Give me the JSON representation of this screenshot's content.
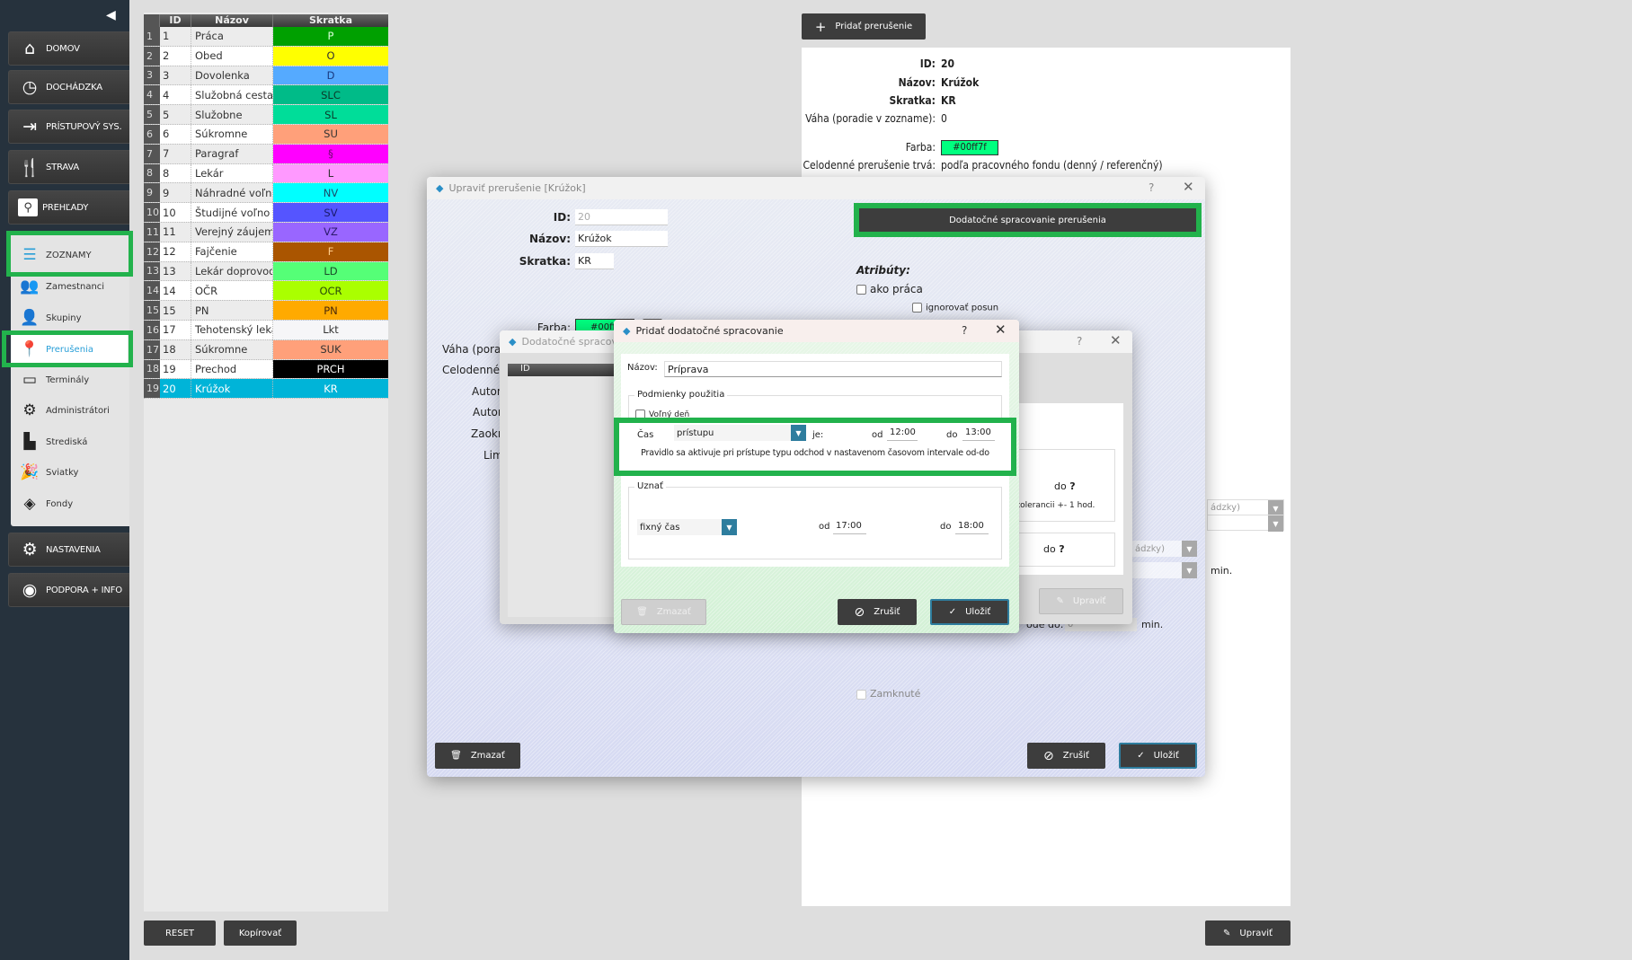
{
  "sidebar": {
    "collapse_icon": "chevron-left",
    "nav": [
      {
        "label": "DOMOV",
        "icon": "home-icon"
      },
      {
        "label": "DOCHÁDZKA",
        "icon": "clock-icon"
      },
      {
        "label": "PRÍSTUPOVÝ SYS.",
        "icon": "login-icon"
      },
      {
        "label": "STRAVA",
        "icon": "cutlery-icon"
      },
      {
        "label": "PREHĽADY",
        "icon": "search-icon"
      }
    ],
    "lists": {
      "header": "ZOZNAMY",
      "items": [
        "Zamestnanci",
        "Skupiny",
        "Prerušenia",
        "Terminály",
        "Administrátori",
        "Strediská",
        "Sviatky",
        "Fondy"
      ],
      "active": "Prerušenia"
    },
    "bottom": [
      {
        "label": "NASTAVENIA",
        "icon": "gear-icon"
      },
      {
        "label": "PODPORA + INFO",
        "icon": "lifebuoy-icon"
      }
    ]
  },
  "table": {
    "columns": [
      "ID",
      "Názov",
      "Skratka"
    ],
    "rows": [
      {
        "n": "1",
        "id": "1",
        "name": "Práca",
        "abbr": "P",
        "color": "#00a000",
        "text": "#d8ffd8"
      },
      {
        "n": "2",
        "id": "2",
        "name": "Obed",
        "abbr": "O",
        "color": "#ffff00",
        "text": "#333"
      },
      {
        "n": "3",
        "id": "3",
        "name": "Dovolenka",
        "abbr": "D",
        "color": "#55aaff",
        "text": "#1a3a80"
      },
      {
        "n": "4",
        "id": "4",
        "name": "Služobná cesta",
        "abbr": "SLC",
        "color": "#00bb88",
        "text": "#0a3a2a"
      },
      {
        "n": "5",
        "id": "5",
        "name": "Služobne",
        "abbr": "SL",
        "color": "#00dd99",
        "text": "#0a3a2a"
      },
      {
        "n": "6",
        "id": "6",
        "name": "Súkromne",
        "abbr": "SU",
        "color": "#ffa07a",
        "text": "#333"
      },
      {
        "n": "7",
        "id": "7",
        "name": "Paragraf",
        "abbr": "§",
        "color": "#ff00ff",
        "text": "#6a0a6a"
      },
      {
        "n": "8",
        "id": "8",
        "name": "Lekár",
        "abbr": "L",
        "color": "#ff99ff",
        "text": "#333"
      },
      {
        "n": "9",
        "id": "9",
        "name": "Náhradné voľno",
        "abbr": "NV",
        "color": "#00ffff",
        "text": "#1a4a6a"
      },
      {
        "n": "10",
        "id": "10",
        "name": "Študijné voľno",
        "abbr": "SV",
        "color": "#5555ff",
        "text": "#1a1a6a"
      },
      {
        "n": "11",
        "id": "11",
        "name": "Verejný záujem",
        "abbr": "VZ",
        "color": "#9966ff",
        "text": "#2a1a6a"
      },
      {
        "n": "12",
        "id": "12",
        "name": "Fajčenie",
        "abbr": "F",
        "color": "#aa5500",
        "text": "#ffcc88"
      },
      {
        "n": "13",
        "id": "13",
        "name": "Lekár doprovod",
        "abbr": "LD",
        "color": "#55ff77",
        "text": "#1a4a2a"
      },
      {
        "n": "14",
        "id": "14",
        "name": "OČR",
        "abbr": "OCR",
        "color": "#aaff00",
        "text": "#2a4a0a"
      },
      {
        "n": "15",
        "id": "15",
        "name": "PN",
        "abbr": "PN",
        "color": "#ffaa00",
        "text": "#4a2a0a"
      },
      {
        "n": "16",
        "id": "17",
        "name": "Tehotenský lekár",
        "abbr": "Lkt",
        "color": "#f6f6f8",
        "text": "#333"
      },
      {
        "n": "17",
        "id": "18",
        "name": "Súkromne",
        "abbr": "SUK",
        "color": "#ffa07a",
        "text": "#333"
      },
      {
        "n": "18",
        "id": "19",
        "name": "Prechod",
        "abbr": "PRCH",
        "color": "#000000",
        "text": "#fff"
      },
      {
        "n": "19",
        "id": "20",
        "name": "Krúžok",
        "abbr": "KR",
        "color": "#00b4d8",
        "text": "#fff",
        "selected": true
      }
    ],
    "reset_label": "RESET",
    "copy_label": "Kopírovať"
  },
  "detail": {
    "add_label": "Pridať prerušenie",
    "fields": [
      {
        "label": "ID:",
        "value": "20",
        "bold": true
      },
      {
        "label": "Názov:",
        "value": "Krúžok",
        "bold": true
      },
      {
        "label": "Skratka:",
        "value": "KR",
        "bold": true
      },
      {
        "label": "Váha (poradie v zozname):",
        "value": "0"
      },
      {
        "label": "Farba:",
        "value": "#00ff7f",
        "swatch": "#00ff7f"
      },
      {
        "label": "Celodenné prerušenie trvá:",
        "value": "podľa pracovného fondu (denný / referenčný)"
      }
    ],
    "edit_label": "Upraviť",
    "fragments": {
      "combo1": "ádzky)",
      "min": "min."
    }
  },
  "edit_dialog": {
    "title": "Upraviť prerušenie [Krúžok]",
    "help": "?",
    "id_label": "ID:",
    "id_value": "20",
    "name_label": "Názov:",
    "name_value": "Krúžok",
    "abbr_label": "Skratka:",
    "abbr_value": "KR",
    "color_label": "Farba:",
    "color_value": "#00ff",
    "extra_button": "Dodatočné spracovanie prerušenia",
    "attributes_label": "Atribúty:",
    "as_work": "ako práca",
    "ignore_shift": "ignorovať posun",
    "left_fragments": [
      "Váha (porad",
      "Celodenné p",
      "Auton",
      "Auton",
      "Zaokr",
      "Lim"
    ],
    "right_fragments": {
      "combo": "ádzky)",
      "ode_do": "ode do:",
      "ode_value": "0",
      "min": "min."
    },
    "locked": "Zamknuté",
    "delete_label": "Zmazať",
    "cancel_label": "Zrušiť",
    "save_label": "Uložiť"
  },
  "processing_dialog": {
    "title": "Dodatočné spracova",
    "help": "?",
    "column": "ID",
    "do1": "do",
    "q": "?",
    "tolerance": "ť v tolerancii +- 1 hod.",
    "do2": "do",
    "edit_label": "Upraviť"
  },
  "add_dialog": {
    "title": "Pridať dodatočné spracovanie",
    "help": "?",
    "name_label": "Názov:",
    "name_value": "Príprava",
    "conditions_legend": "Podmienky použitia",
    "free_day": "Voľný deň",
    "time_label": "Čas",
    "time_type": "prístupu",
    "is_label": "je:",
    "from_label": "od",
    "from_value": "12:00",
    "to_label": "do",
    "to_value": "13:00",
    "rule_text": "Pravidlo sa aktivuje pri prístupe typu odchod v nastavenom časovom intervale od-do",
    "accept_legend": "Uznať",
    "accept_type": "fixný čas",
    "acc_from_label": "od",
    "acc_from_value": "17:00",
    "acc_to_label": "do",
    "acc_to_value": "18:00",
    "delete_label": "Zmazať",
    "cancel_label": "Zrušiť",
    "save_label": "Uložiť"
  },
  "colors": {
    "highlight": "#22b24c",
    "accent": "#2e7d9e",
    "selected_row": "#00b4d8",
    "sidebar": "#26323d"
  }
}
